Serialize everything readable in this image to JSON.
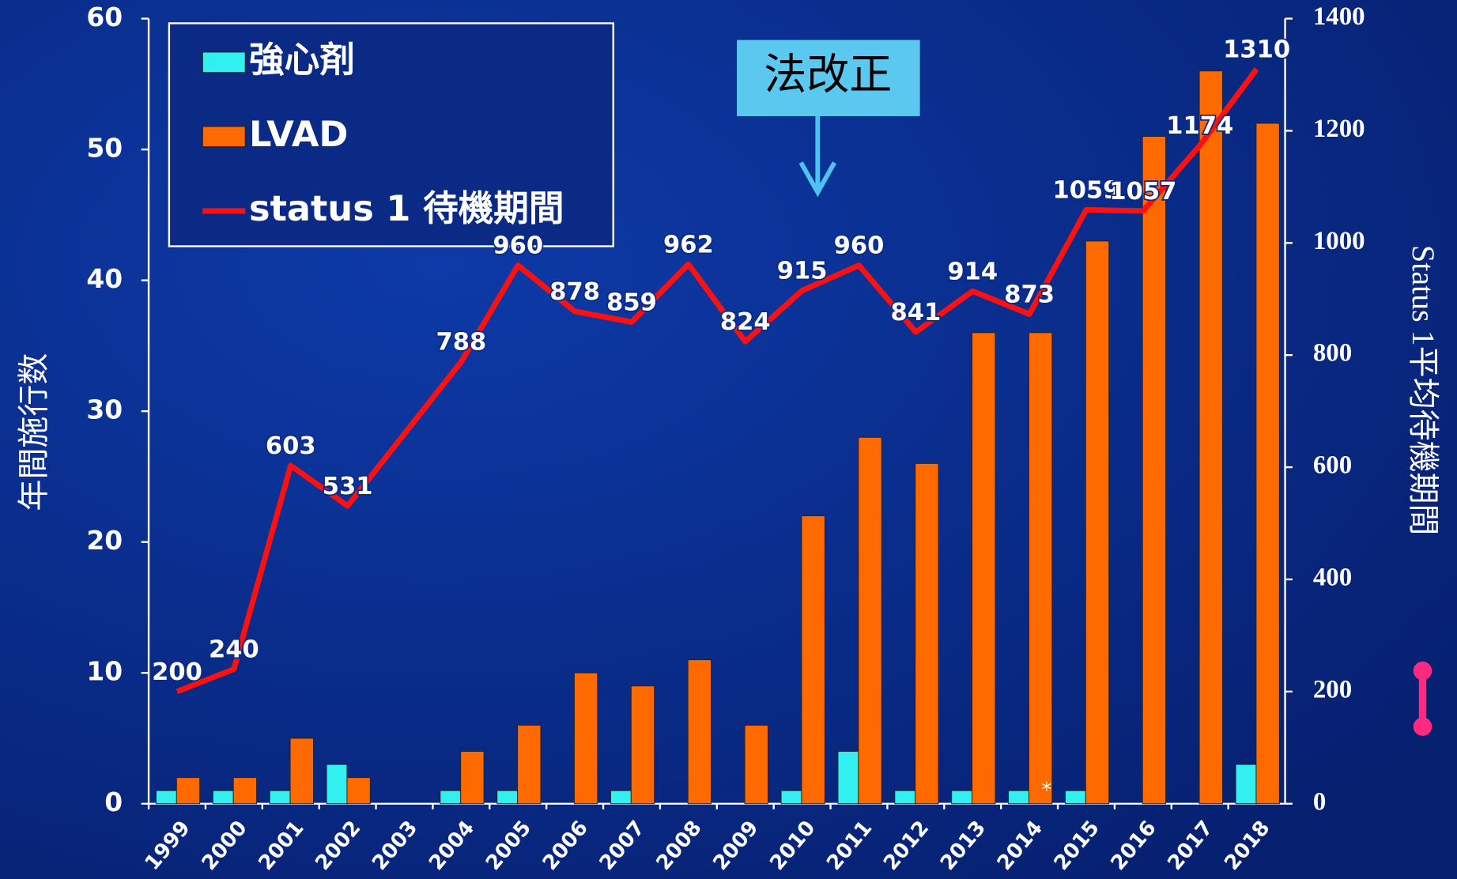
{
  "chart_data": {
    "type": "bar",
    "categories": [
      "1999",
      "2000",
      "2001",
      "2002",
      "2003",
      "2004",
      "2005",
      "2006",
      "2007",
      "2008",
      "2009",
      "2010",
      "2011",
      "2012",
      "2013",
      "2014",
      "2015",
      "2016",
      "2017",
      "2018"
    ],
    "series": [
      {
        "name": "強心剤",
        "color": "#33f0f0",
        "values": [
          1,
          1,
          1,
          3,
          0,
          1,
          1,
          0,
          1,
          0,
          0,
          1,
          4,
          1,
          1,
          1,
          1,
          0,
          0,
          3
        ]
      },
      {
        "name": "LVAD",
        "color": "#ff6a00",
        "values": [
          2,
          2,
          5,
          2,
          0,
          4,
          6,
          10,
          9,
          11,
          6,
          22,
          28,
          26,
          36,
          36,
          43,
          51,
          56,
          52
        ]
      },
      {
        "name": "status 1 待機期間",
        "color": "#ff1010",
        "type": "line",
        "axis": "y2",
        "x": [
          1999,
          2000,
          2001,
          2002,
          2004,
          2005,
          2006,
          2007,
          2008,
          2009,
          2010,
          2011,
          2012,
          2013,
          2014,
          2015,
          2016,
          2017,
          2018
        ],
        "values": [
          200,
          240,
          603,
          531,
          788,
          960,
          878,
          859,
          962,
          824,
          915,
          960,
          841,
          914,
          873,
          1059,
          1057,
          1174,
          1310
        ]
      }
    ],
    "ylabel": "年間施行数",
    "y2label": "Status 1平均待機期間",
    "ylim": [
      0,
      60
    ],
    "yticks": [
      0,
      10,
      20,
      30,
      40,
      50,
      60
    ],
    "y2lim": [
      0,
      1400
    ],
    "y2ticks": [
      0,
      200,
      400,
      600,
      800,
      1000,
      1200,
      1400
    ],
    "annotations": [
      "法改正",
      "*"
    ],
    "legend": "top-left"
  }
}
